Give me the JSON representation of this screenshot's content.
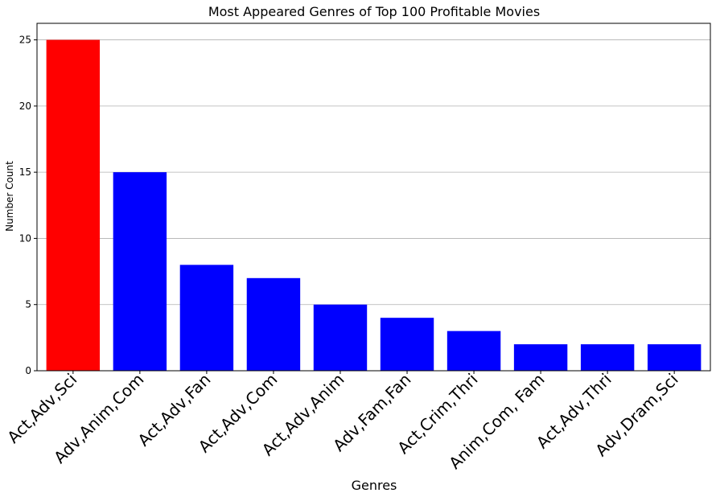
{
  "chart_data": {
    "type": "bar",
    "title": "Most Appeared Genres of Top 100 Profitable Movies",
    "xlabel": "Genres",
    "ylabel": "Number Count",
    "categories": [
      "Act,Adv,Sci",
      "Adv,Anim,Com",
      "Act,Adv,Fan",
      "Act,Adv,Com",
      "Act,Adv,Anim",
      "Adv,Fam,Fan",
      "Act,Crim,Thri",
      "Anim,Com, Fam",
      "Act,Adv,Thri",
      "Adv,Dram,Sci"
    ],
    "values": [
      25,
      15,
      8,
      7,
      5,
      4,
      3,
      2,
      2,
      2
    ],
    "colors": [
      "#ff0000",
      "#0000ff",
      "#0000ff",
      "#0000ff",
      "#0000ff",
      "#0000ff",
      "#0000ff",
      "#0000ff",
      "#0000ff",
      "#0000ff"
    ],
    "ylim": [
      0,
      26.25
    ],
    "yticks": [
      0,
      5,
      10,
      15,
      20,
      25
    ],
    "grid": "y"
  }
}
